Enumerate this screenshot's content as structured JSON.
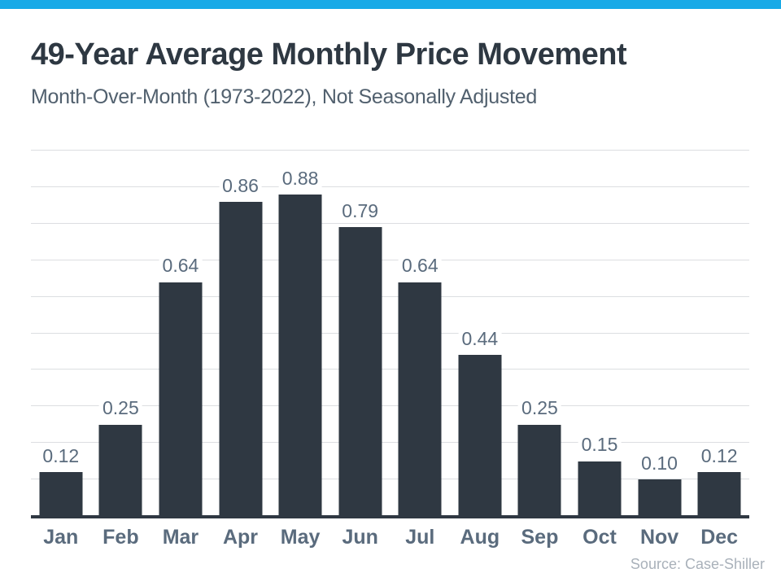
{
  "page": {
    "title": "49-Year Average Monthly Price Movement",
    "subtitle": "Month-Over-Month (1973-2022), Not Seasonally Adjusted",
    "source": "Source: Case-Shiller"
  },
  "colors": {
    "accent_strip": "#18aae7",
    "bar": "#2f3842",
    "title_text": "#2e3842",
    "subtitle_text": "#51606e",
    "label_text": "#5a6b7d",
    "gridline": "#dcdee1",
    "baseline": "#2f3842",
    "source_text": "#a9b1ba"
  },
  "chart_data": {
    "type": "bar",
    "title": "49-Year Average Monthly Price Movement",
    "subtitle": "Month-Over-Month (1973-2022), Not Seasonally Adjusted",
    "source": "Source: Case-Shiller",
    "categories": [
      "Jan",
      "Feb",
      "Mar",
      "Apr",
      "May",
      "Jun",
      "Jul",
      "Aug",
      "Sep",
      "Oct",
      "Nov",
      "Dec"
    ],
    "values": [
      0.12,
      0.25,
      0.64,
      0.86,
      0.88,
      0.79,
      0.64,
      0.44,
      0.25,
      0.15,
      0.1,
      0.12
    ],
    "value_labels": [
      "0.12",
      "0.25",
      "0.64",
      "0.86",
      "0.88",
      "0.79",
      "0.64",
      "0.44",
      "0.25",
      "0.15",
      "0.10",
      "0.12"
    ],
    "xlabel": "",
    "ylabel": "",
    "ylim": [
      0,
      1.0
    ],
    "grid_step": 0.1,
    "grid": true,
    "legend": false,
    "data_labels": true
  }
}
